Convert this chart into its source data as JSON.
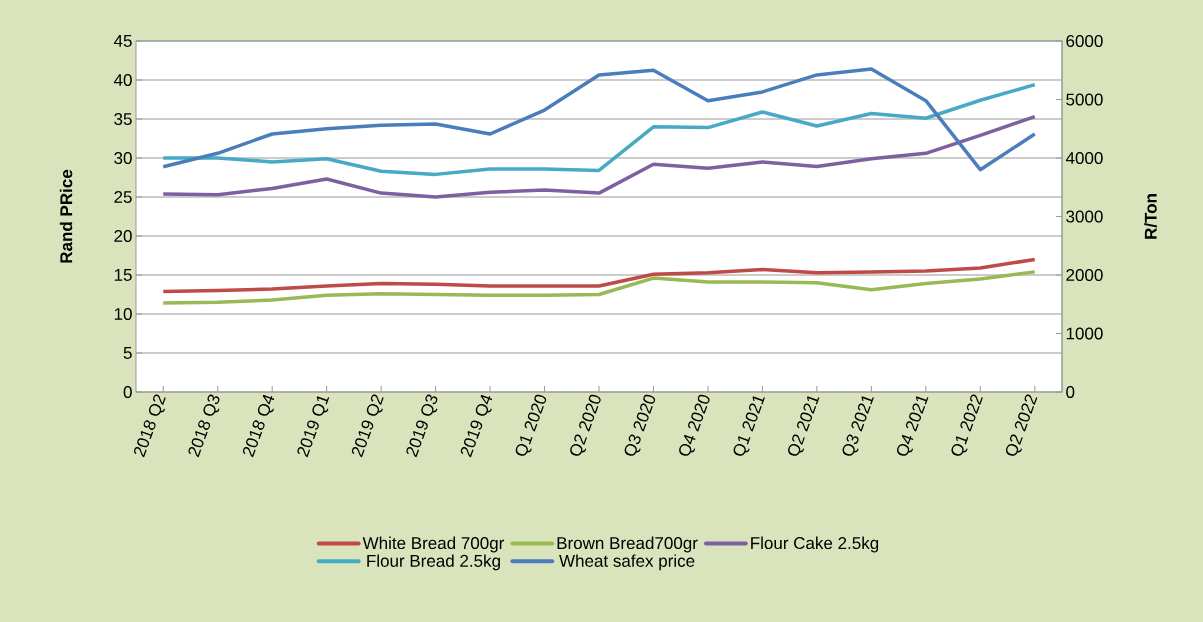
{
  "chart_data": {
    "type": "line",
    "ylabel": "Rand PRice",
    "y2label": "R/Ton",
    "categories": [
      "2018 Q2",
      "2018 Q3",
      "2018 Q4",
      "2019 Q1",
      "2019 Q2",
      "2019 Q3",
      "2019 Q4",
      "Q1 2020",
      "Q2 2020",
      "Q3 2020",
      "Q4 2020",
      "Q1 2021",
      "Q2 2021",
      "Q3 2021",
      "Q4 2021",
      "Q1 2022",
      "Q2 2022"
    ],
    "series": [
      {
        "name": "White Bread 700gr",
        "color": "#be4b48",
        "values": [
          12.9,
          13.0,
          13.2,
          13.6,
          13.9,
          13.8,
          13.6,
          13.6,
          13.6,
          15.1,
          15.3,
          15.7,
          15.3,
          15.4,
          15.5,
          15.9,
          17.0
        ]
      },
      {
        "name": "Brown Bread700gr",
        "color": "#98b954",
        "values": [
          11.4,
          11.5,
          11.8,
          12.4,
          12.6,
          12.5,
          12.4,
          12.4,
          12.5,
          14.6,
          14.1,
          14.1,
          14.0,
          13.1,
          13.9,
          14.5,
          15.4
        ]
      },
      {
        "name": "Flour Cake 2.5kg",
        "color": "#7d60a0",
        "values": [
          25.4,
          25.3,
          26.1,
          27.3,
          25.5,
          25.0,
          25.6,
          25.9,
          25.5,
          29.2,
          28.7,
          29.5,
          28.9,
          29.9,
          30.6,
          32.9,
          35.3
        ]
      },
      {
        "name": "Flour Bread 2.5kg",
        "color": "#46aac5",
        "values": [
          30.0,
          30.0,
          29.5,
          29.9,
          28.3,
          27.9,
          28.6,
          28.6,
          28.4,
          34.0,
          33.9,
          35.9,
          34.1,
          35.7,
          35.1,
          37.4,
          39.4
        ]
      },
      {
        "name": "Wheat safex price",
        "color": "#4a7ebb",
        "axis": "y2",
        "values": [
          3850,
          4080,
          4410,
          4500,
          4560,
          4580,
          4410,
          4820,
          5420,
          5500,
          4980,
          5130,
          5420,
          5520,
          4980,
          3800,
          4410
        ]
      }
    ],
    "ylim": [
      0,
      45
    ],
    "yticks": [
      0,
      5,
      10,
      15,
      20,
      25,
      30,
      35,
      40,
      45
    ],
    "y2lim": [
      0,
      6000
    ],
    "y2ticks": [
      0,
      1000,
      2000,
      3000,
      4000,
      5000,
      6000
    ],
    "grid": "y",
    "legend": "bottom",
    "marker": "none",
    "line_style": "solid"
  }
}
